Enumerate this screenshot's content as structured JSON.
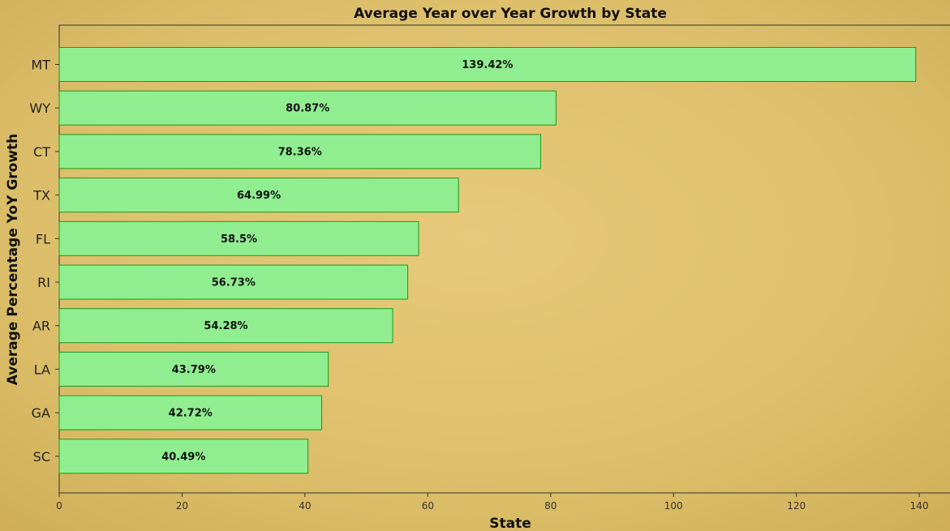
{
  "chart_data": {
    "type": "bar",
    "orientation": "horizontal",
    "title": "Average Year over Year Growth by State",
    "xlabel": "State",
    "ylabel": "Average Percentage YoY Growth",
    "xlim": [
      0,
      145
    ],
    "x_ticks": [
      0,
      20,
      40,
      60,
      80,
      100,
      120,
      140
    ],
    "categories": [
      "MT",
      "WY",
      "CT",
      "TX",
      "FL",
      "RI",
      "AR",
      "LA",
      "GA",
      "SC"
    ],
    "values": [
      139.42,
      80.87,
      78.36,
      64.99,
      58.5,
      56.73,
      54.28,
      43.79,
      42.72,
      40.49
    ],
    "data_labels": [
      "139.42%",
      "80.87%",
      "78.36%",
      "64.99%",
      "58.5%",
      "56.73%",
      "54.28%",
      "43.79%",
      "42.72%",
      "40.49%"
    ],
    "grid": false,
    "colors": {
      "bar_fill": "#90ee90",
      "bar_edge": "#1a9a1a",
      "background": "#dcbd6a"
    }
  }
}
